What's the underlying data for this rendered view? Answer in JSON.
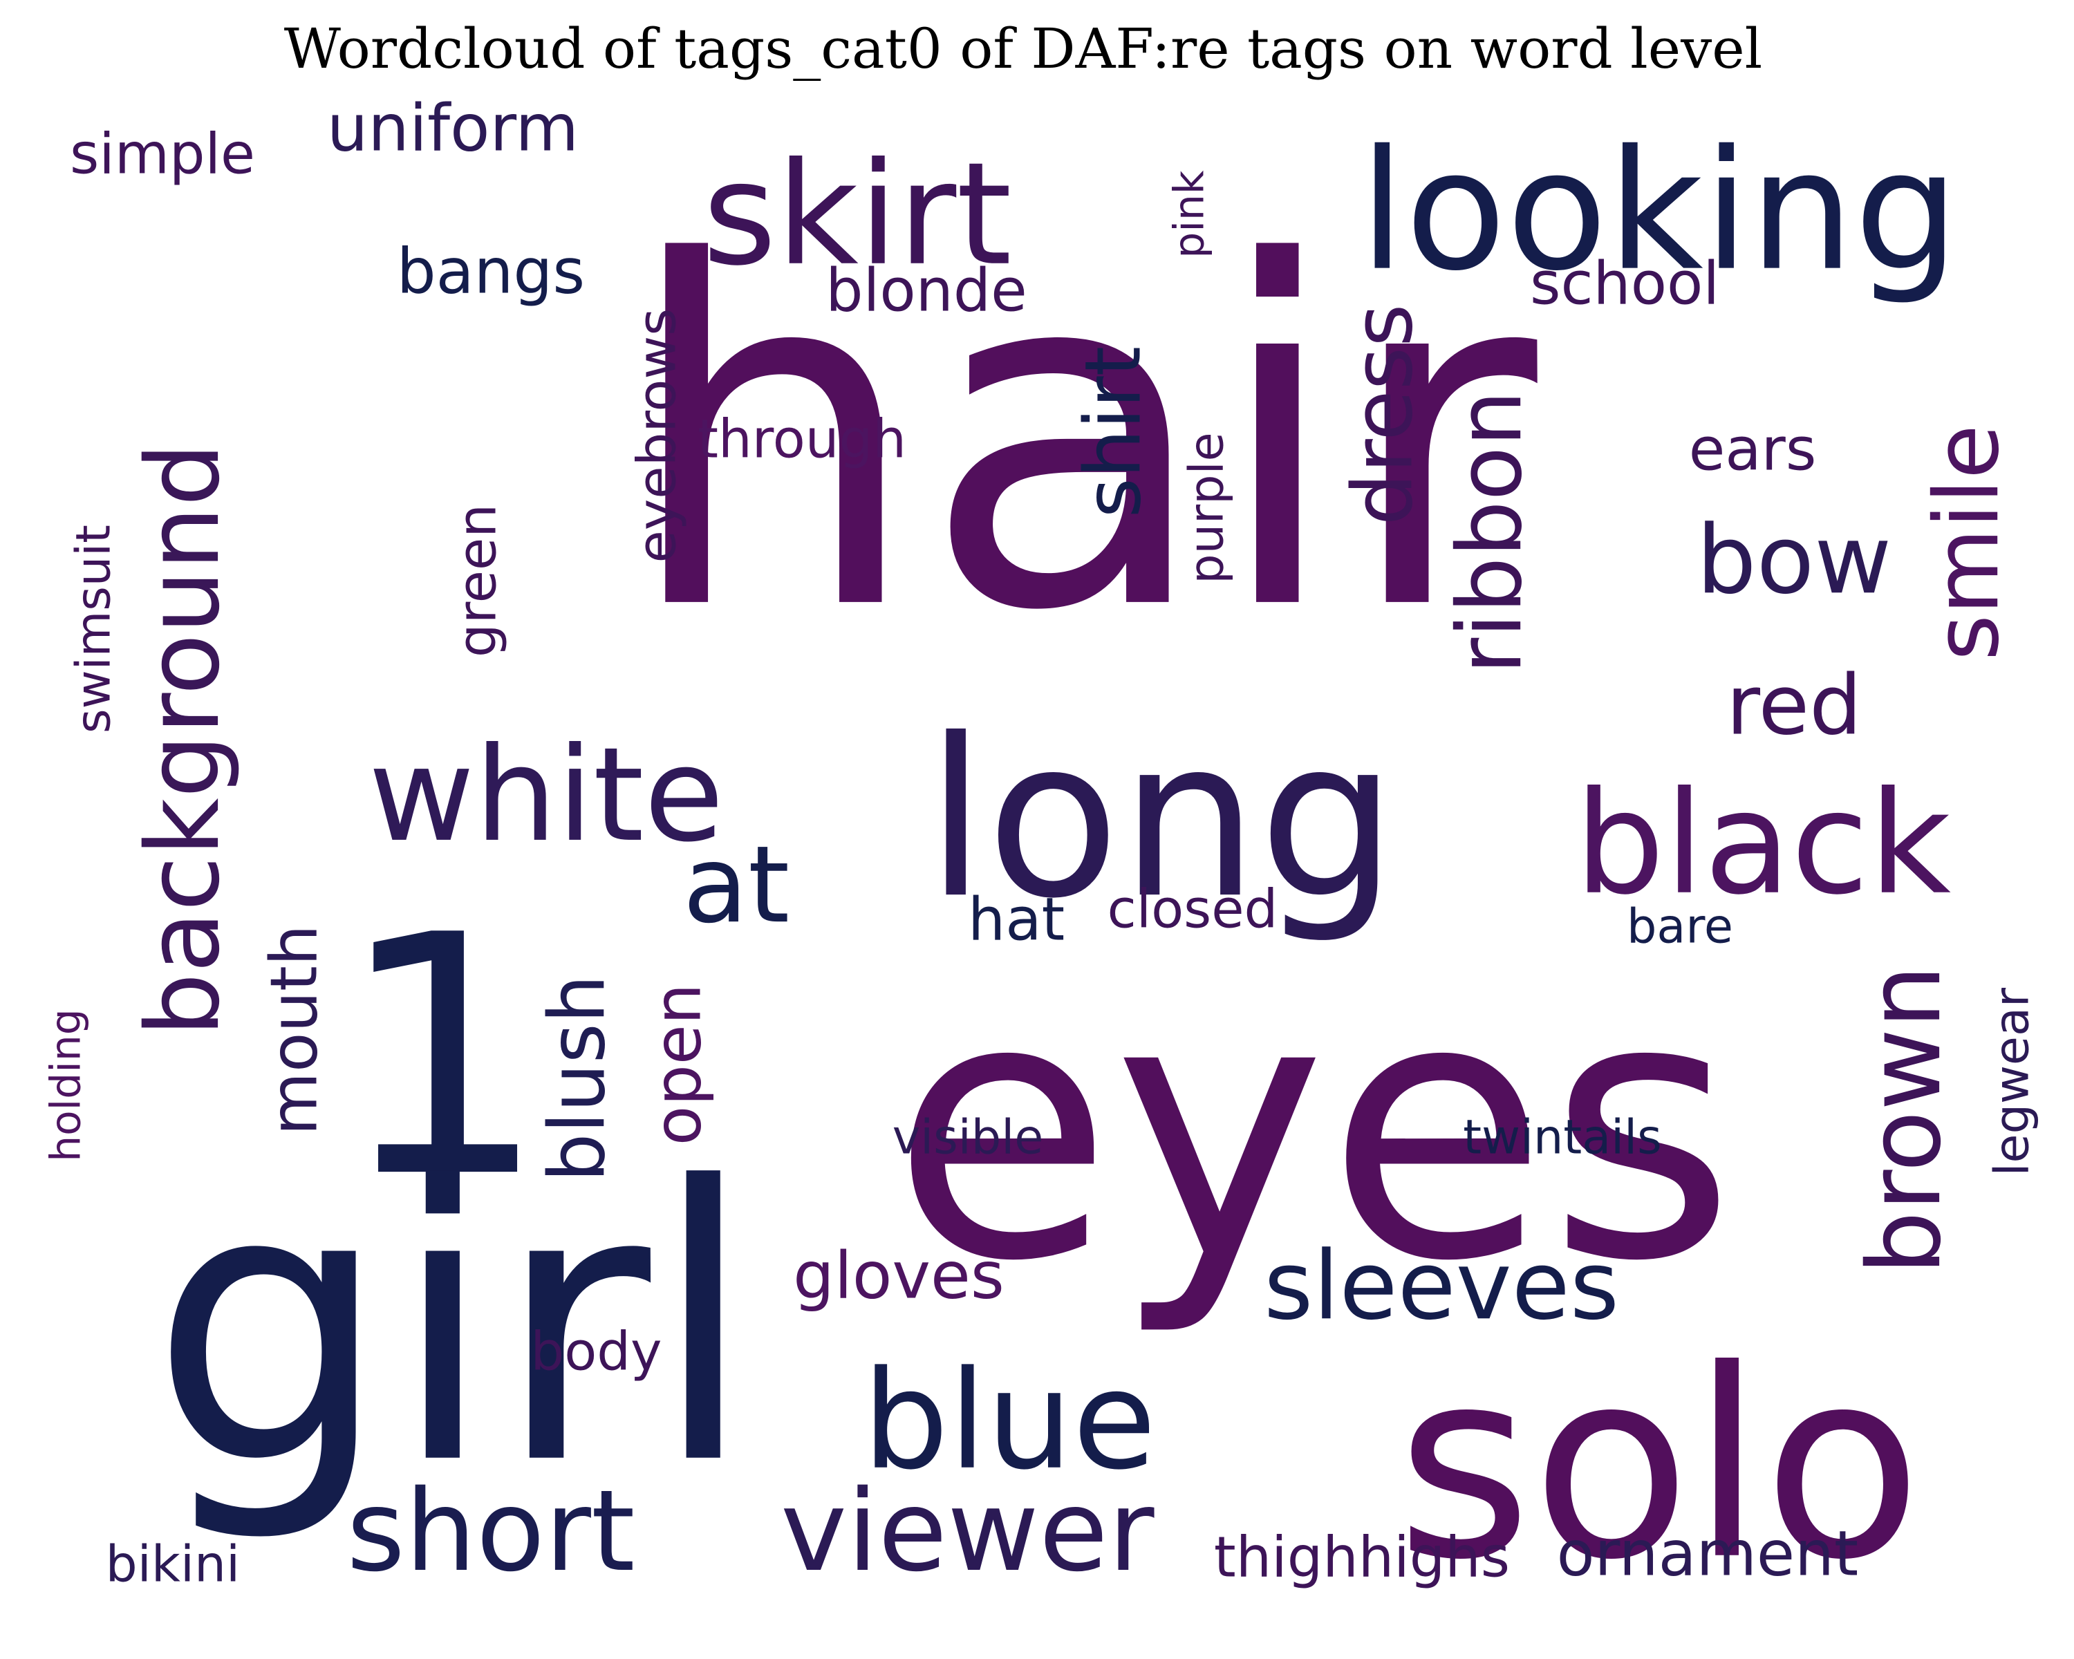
{
  "title": "Wordcloud of tags_cat0 of DAF:re tags on word level",
  "colors": {
    "background": "#ffffff",
    "title": "#000000",
    "navy": "#141d4b",
    "dark_purple": "#520f5c",
    "mid_purple": "#4a1a5e",
    "indigo": "#271f55"
  },
  "words": [
    {
      "text": "hair",
      "color": "#520f5c",
      "orientation": "horizontal"
    },
    {
      "text": "eyes",
      "color": "#520f5c",
      "orientation": "horizontal"
    },
    {
      "text": "1",
      "color": "#141d4b",
      "orientation": "horizontal"
    },
    {
      "text": "girl",
      "color": "#141d4b",
      "orientation": "horizontal"
    },
    {
      "text": "solo",
      "color": "#520f5c",
      "orientation": "horizontal"
    },
    {
      "text": "long",
      "color": "#2b1a55",
      "orientation": "horizontal"
    },
    {
      "text": "looking",
      "color": "#141d4b",
      "orientation": "horizontal"
    },
    {
      "text": "skirt",
      "color": "#3d1458",
      "orientation": "horizontal"
    },
    {
      "text": "white",
      "color": "#2f1a58",
      "orientation": "horizontal"
    },
    {
      "text": "background",
      "color": "#3a1758",
      "orientation": "vertical"
    },
    {
      "text": "black",
      "color": "#4c1460",
      "orientation": "horizontal"
    },
    {
      "text": "blue",
      "color": "#141d4b",
      "orientation": "horizontal"
    },
    {
      "text": "short",
      "color": "#1a1d50",
      "orientation": "horizontal"
    },
    {
      "text": "viewer",
      "color": "#2b1a55",
      "orientation": "horizontal"
    },
    {
      "text": "at",
      "color": "#141d4b",
      "orientation": "horizontal"
    },
    {
      "text": "sleeves",
      "color": "#141d4b",
      "orientation": "horizontal"
    },
    {
      "text": "brown",
      "color": "#3d1458",
      "orientation": "vertical"
    },
    {
      "text": "smile",
      "color": "#4c1460",
      "orientation": "vertical"
    },
    {
      "text": "ribbon",
      "color": "#3d1458",
      "orientation": "vertical"
    },
    {
      "text": "dress",
      "color": "#3d1458",
      "orientation": "vertical"
    },
    {
      "text": "shirt",
      "color": "#141d4b",
      "orientation": "vertical"
    },
    {
      "text": "blush",
      "color": "#1f1d53",
      "orientation": "vertical"
    },
    {
      "text": "mouth",
      "color": "#2b1a55",
      "orientation": "vertical"
    },
    {
      "text": "open",
      "color": "#4c1460",
      "orientation": "vertical"
    },
    {
      "text": "bow",
      "color": "#2b1a55",
      "orientation": "horizontal"
    },
    {
      "text": "red",
      "color": "#3d1458",
      "orientation": "horizontal"
    },
    {
      "text": "uniform",
      "color": "#2b1a55",
      "orientation": "horizontal"
    },
    {
      "text": "simple",
      "color": "#3d1458",
      "orientation": "horizontal"
    },
    {
      "text": "bangs",
      "color": "#141d4b",
      "orientation": "horizontal"
    },
    {
      "text": "blonde",
      "color": "#3d1458",
      "orientation": "horizontal"
    },
    {
      "text": "school",
      "color": "#3d1458",
      "orientation": "horizontal"
    },
    {
      "text": "ears",
      "color": "#3d1458",
      "orientation": "horizontal"
    },
    {
      "text": "through",
      "color": "#4c1460",
      "orientation": "horizontal"
    },
    {
      "text": "eyebrows",
      "color": "#3d1458",
      "orientation": "vertical"
    },
    {
      "text": "pink",
      "color": "#3d1458",
      "orientation": "vertical"
    },
    {
      "text": "purple",
      "color": "#3d1458",
      "orientation": "vertical"
    },
    {
      "text": "green",
      "color": "#3d1458",
      "orientation": "vertical"
    },
    {
      "text": "swimsuit",
      "color": "#3d1458",
      "orientation": "vertical"
    },
    {
      "text": "hat",
      "color": "#141d4b",
      "orientation": "horizontal"
    },
    {
      "text": "closed",
      "color": "#3d1458",
      "orientation": "horizontal"
    },
    {
      "text": "bare",
      "color": "#141d4b",
      "orientation": "horizontal"
    },
    {
      "text": "legwear",
      "color": "#2b1a55",
      "orientation": "vertical"
    },
    {
      "text": "holding",
      "color": "#4c1460",
      "orientation": "vertical"
    },
    {
      "text": "visible",
      "color": "#2b1a55",
      "orientation": "horizontal"
    },
    {
      "text": "twintails",
      "color": "#141d4b",
      "orientation": "horizontal"
    },
    {
      "text": "gloves",
      "color": "#4c1460",
      "orientation": "horizontal"
    },
    {
      "text": "body",
      "color": "#3d1458",
      "orientation": "horizontal"
    },
    {
      "text": "bikini",
      "color": "#2b1a55",
      "orientation": "horizontal"
    },
    {
      "text": "thighhighs",
      "color": "#3d1458",
      "orientation": "horizontal"
    },
    {
      "text": "ornament",
      "color": "#2b1a55",
      "orientation": "horizontal"
    }
  ]
}
